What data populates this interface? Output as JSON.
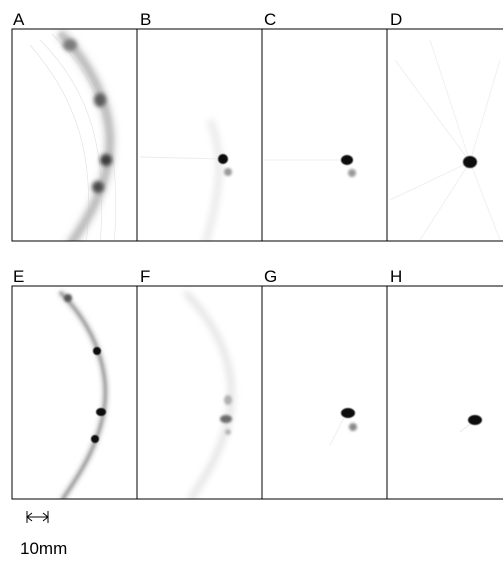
{
  "panels": [
    {
      "label": "A"
    },
    {
      "label": "B"
    },
    {
      "label": "C"
    },
    {
      "label": "D"
    },
    {
      "label": "E"
    },
    {
      "label": "F"
    },
    {
      "label": "G"
    },
    {
      "label": "H"
    }
  ],
  "scale_bar": {
    "label": "10mm"
  },
  "colors": {
    "background": "#ffffff",
    "border": "#000000",
    "ink": "#000000"
  }
}
